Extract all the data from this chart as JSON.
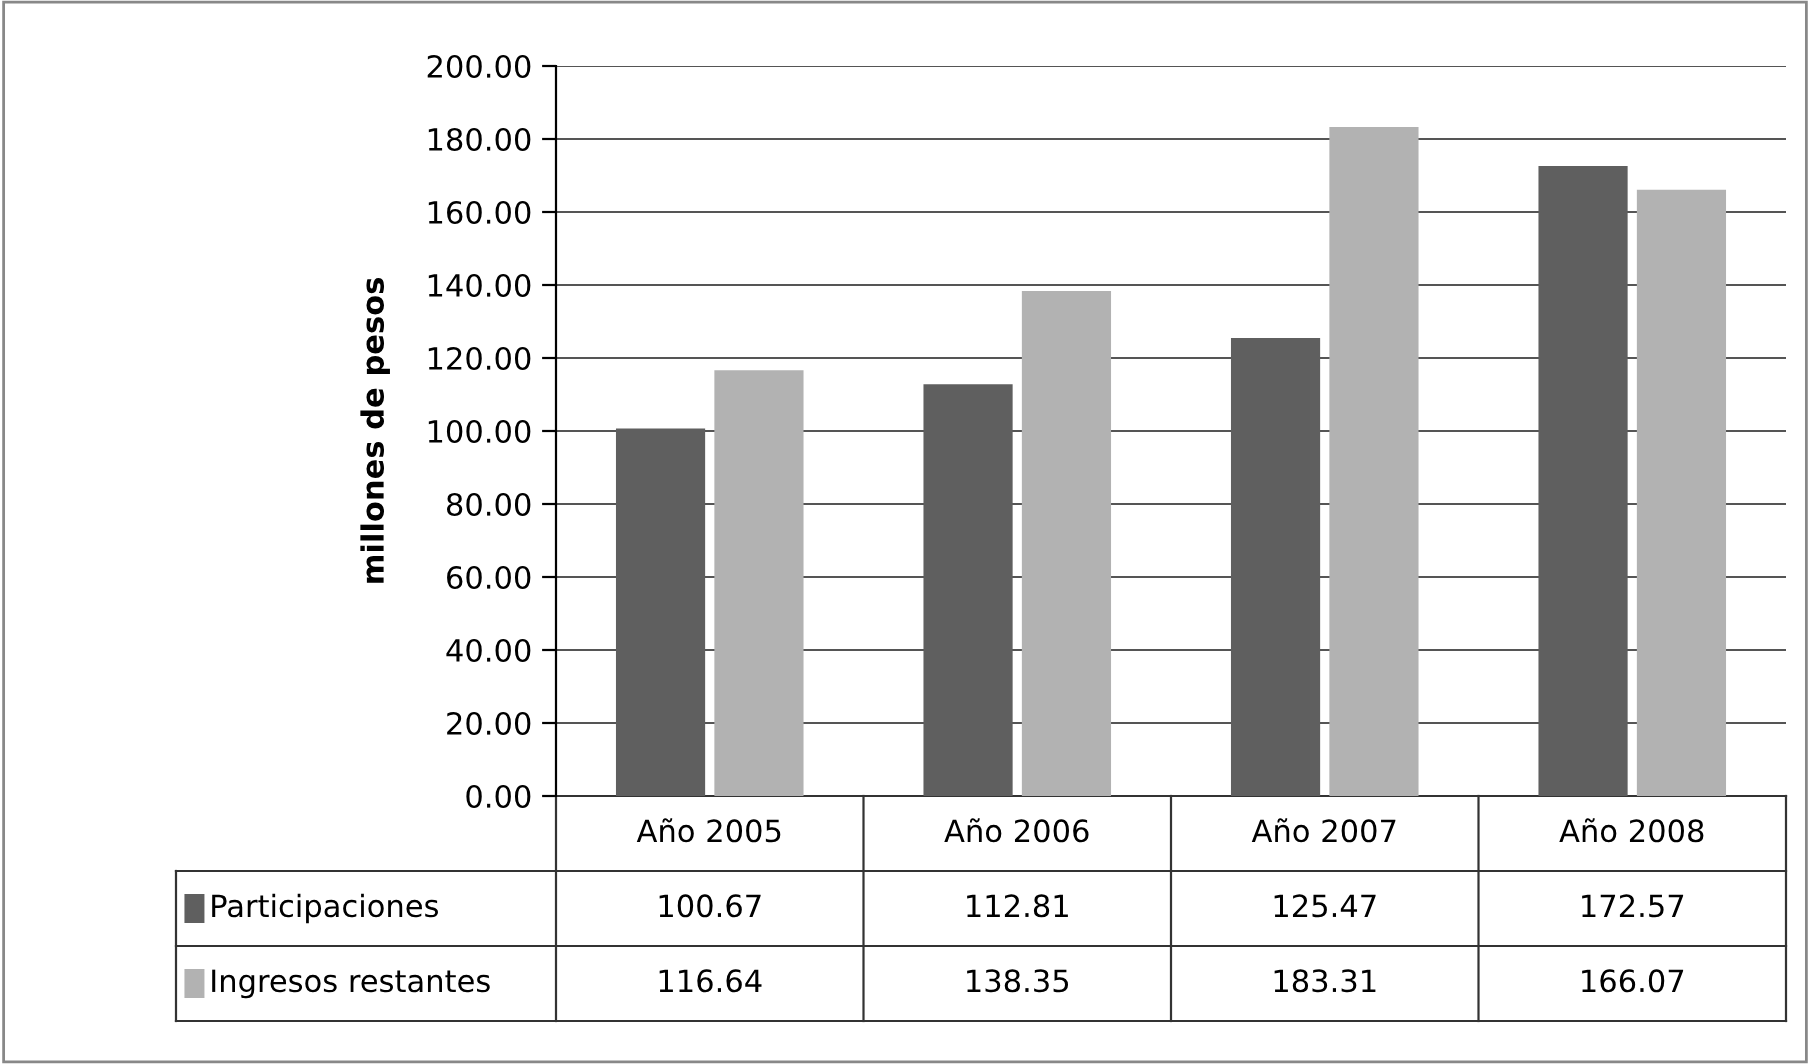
{
  "chart_data": {
    "type": "bar",
    "ylabel": "millones de pesos",
    "categories": [
      "Año 2005",
      "Año 2006",
      "Año 2007",
      "Año 2008"
    ],
    "series": [
      {
        "name": "Participaciones",
        "color": "#5f5f5f",
        "values": [
          100.67,
          112.81,
          125.47,
          172.57
        ]
      },
      {
        "name": "Ingresos restantes",
        "color": "#b2b2b2",
        "values": [
          116.64,
          138.35,
          183.31,
          166.07
        ]
      }
    ],
    "ylim": [
      0,
      200
    ],
    "yticks": [
      {
        "value": 0,
        "label": "0.00"
      },
      {
        "value": 20,
        "label": "20.00"
      },
      {
        "value": 40,
        "label": "40.00"
      },
      {
        "value": 60,
        "label": "60.00"
      },
      {
        "value": 80,
        "label": "80.00"
      },
      {
        "value": 100,
        "label": "100.00"
      },
      {
        "value": 120,
        "label": "120.00"
      },
      {
        "value": 140,
        "label": "140.00"
      },
      {
        "value": 160,
        "label": "160.00"
      },
      {
        "value": 180,
        "label": "180.00"
      },
      {
        "value": 200,
        "label": "200.00"
      }
    ],
    "grid": "y",
    "legend": "bottom",
    "data_labels": true
  }
}
